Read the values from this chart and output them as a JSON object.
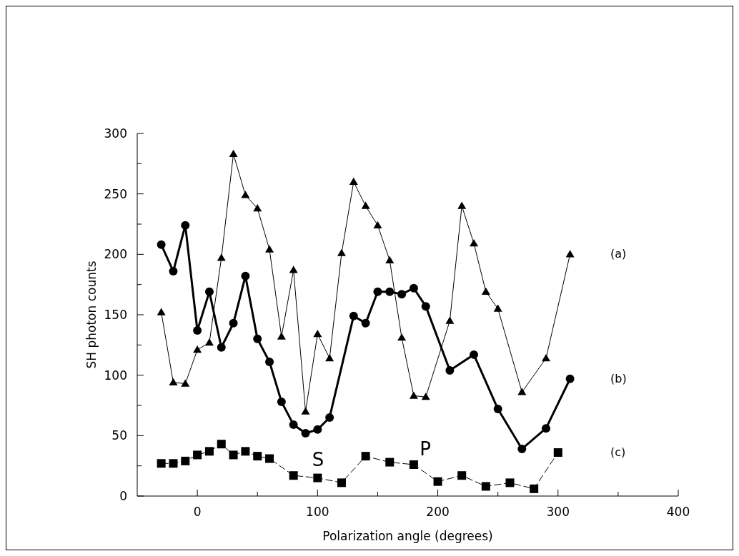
{
  "chart_data": {
    "type": "line",
    "xlabel": "Polarization angle (degrees)",
    "ylabel": "SH photon counts",
    "xlim": [
      -50,
      400
    ],
    "xticks": [
      0,
      {
        "value": 50,
        "label": null
      },
      100,
      {
        "value": 150,
        "label": null
      },
      200,
      {
        "value": 250,
        "label": null
      },
      300,
      {
        "value": 350,
        "label": null
      },
      400
    ],
    "ylim": [
      0,
      300
    ],
    "yticks": [
      0,
      {
        "value": 25,
        "label": null
      },
      50,
      {
        "value": 75,
        "label": null
      },
      100,
      {
        "value": 125,
        "label": null
      },
      150,
      {
        "value": 175,
        "label": null
      },
      200,
      {
        "value": 225,
        "label": null
      },
      250,
      {
        "value": 275,
        "label": null
      },
      300
    ],
    "grid": false,
    "series": [
      {
        "name": "(a)",
        "color": "#000000",
        "marker": "triangle",
        "line_style": "solid",
        "x": [
          -30,
          -20,
          -10,
          0,
          10,
          20,
          30,
          40,
          50,
          60,
          70,
          80,
          90,
          100,
          110,
          120,
          130,
          140,
          150,
          160,
          170,
          180,
          190,
          210,
          220,
          230,
          240,
          250,
          270,
          290,
          310
        ],
        "values": [
          152,
          94,
          93,
          121,
          127,
          197,
          283,
          249,
          238,
          204,
          132,
          187,
          70,
          134,
          114,
          201,
          260,
          240,
          224,
          195,
          131,
          83,
          82,
          145,
          240,
          209,
          169,
          155,
          86,
          114,
          200
        ]
      },
      {
        "name": "(b)",
        "color": "#000000",
        "marker": "circle",
        "line_style": "solid",
        "x": [
          -30,
          -20,
          -10,
          0,
          10,
          20,
          30,
          40,
          50,
          60,
          70,
          80,
          90,
          100,
          110,
          130,
          140,
          150,
          160,
          170,
          180,
          190,
          210,
          230,
          250,
          270,
          290,
          310
        ],
        "values": [
          208,
          186,
          224,
          137,
          169,
          123,
          143,
          182,
          130,
          111,
          78,
          59,
          52,
          55,
          65,
          149,
          143,
          169,
          169,
          167,
          172,
          157,
          104,
          117,
          72,
          39,
          56,
          97
        ]
      },
      {
        "name": "(c)",
        "color": "#000000",
        "marker": "square",
        "line_style": "dashed",
        "x": [
          -30,
          -20,
          -10,
          0,
          10,
          20,
          30,
          40,
          50,
          60,
          80,
          100,
          120,
          140,
          160,
          180,
          200,
          220,
          240,
          260,
          280,
          300
        ],
        "values": [
          27,
          27,
          29,
          34,
          37,
          43,
          34,
          37,
          33,
          31,
          17,
          15,
          11,
          33,
          28,
          26,
          12,
          17,
          8,
          11,
          6,
          36
        ]
      }
    ],
    "annotations": [
      "S",
      "P"
    ]
  }
}
